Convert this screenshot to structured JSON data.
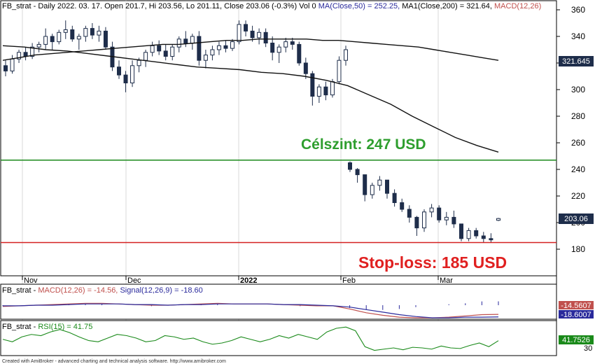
{
  "header": {
    "prefix": "FB_strat - Daily 2022. 03. 17. Open 201.7, Hi 203.56, Lo 201.11, Close 203.06 (-0.3%) Vol 0 ",
    "ma50": "MA(Close,50) = 252.25, ",
    "ma200": "MA1(Close,200) = 321.64, ",
    "macd": "MACD(12,26)"
  },
  "macd_header": {
    "prefix": "FB_strat - ",
    "macd": "MACD(12,26) = -14.56, ",
    "signal": "Signal(12,26,9) = -18.60"
  },
  "rsi_header": {
    "prefix": "FB_strat - ",
    "rsi": "RSI(15) = 41.75"
  },
  "annotations": {
    "target": "Célszint: 247 USD",
    "stop": "Stop-loss: 185 USD"
  },
  "axis_badges": {
    "ma200": "321.645",
    "close": "203.06",
    "macd": "-14.5607",
    "signal": "-18.6007",
    "rsi": "41.7526"
  },
  "footer": "Created with AmiBroker - advanced charting and technical analysis software. http://www.amibroker.com",
  "colors": {
    "candle": "#1e2d4a",
    "target_line": "#1a8a1a",
    "stop_line": "#d42020",
    "target_text": "#2e9e2e",
    "stop_text": "#e02020",
    "macd": "#c0504d",
    "signal": "#2a2a9c",
    "rsi": "#1a8a1a",
    "badge": "#1e2d4a"
  },
  "chart_data": {
    "type": "candlestick",
    "price_axis": {
      "ticks": [
        180,
        200,
        220,
        240,
        260,
        280,
        300,
        320,
        340,
        360
      ],
      "ylim": [
        170,
        366
      ]
    },
    "time_labels": [
      "Nov",
      "Dec",
      "2022",
      "Feb",
      "Mar"
    ],
    "levels": {
      "target": 247,
      "stop_loss": 185
    },
    "ma200_end": 321.645,
    "candles": [
      [
        318,
        322,
        310,
        314
      ],
      [
        314,
        326,
        312,
        323
      ],
      [
        323,
        330,
        320,
        328
      ],
      [
        328,
        332,
        322,
        325
      ],
      [
        325,
        335,
        323,
        332
      ],
      [
        332,
        336,
        328,
        334
      ],
      [
        334,
        346,
        330,
        340
      ],
      [
        340,
        342,
        330,
        336
      ],
      [
        336,
        345,
        334,
        343
      ],
      [
        343,
        352,
        338,
        345
      ],
      [
        345,
        348,
        336,
        338
      ],
      [
        338,
        342,
        330,
        340
      ],
      [
        340,
        348,
        336,
        346
      ],
      [
        346,
        350,
        338,
        341
      ],
      [
        341,
        348,
        336,
        344
      ],
      [
        344,
        347,
        330,
        332
      ],
      [
        332,
        336,
        314,
        317
      ],
      [
        317,
        322,
        308,
        311
      ],
      [
        311,
        314,
        298,
        305
      ],
      [
        305,
        322,
        302,
        318
      ],
      [
        318,
        324,
        313,
        322
      ],
      [
        322,
        330,
        317,
        328
      ],
      [
        328,
        336,
        325,
        333
      ],
      [
        333,
        337,
        326,
        329
      ],
      [
        329,
        334,
        322,
        325
      ],
      [
        325,
        334,
        322,
        332
      ],
      [
        332,
        340,
        328,
        338
      ],
      [
        338,
        344,
        332,
        335
      ],
      [
        335,
        342,
        330,
        340
      ],
      [
        340,
        344,
        318,
        322
      ],
      [
        322,
        330,
        316,
        326
      ],
      [
        326,
        333,
        322,
        330
      ],
      [
        330,
        336,
        326,
        333
      ],
      [
        333,
        337,
        328,
        331
      ],
      [
        331,
        338,
        329,
        336
      ],
      [
        336,
        352,
        334,
        349
      ],
      [
        349,
        352,
        340,
        344
      ],
      [
        344,
        348,
        336,
        339
      ],
      [
        339,
        346,
        334,
        343
      ],
      [
        343,
        346,
        332,
        335
      ],
      [
        335,
        340,
        322,
        328
      ],
      [
        328,
        334,
        320,
        332
      ],
      [
        332,
        339,
        328,
        336
      ],
      [
        336,
        339,
        330,
        334
      ],
      [
        334,
        336,
        318,
        320
      ],
      [
        320,
        324,
        308,
        312
      ],
      [
        312,
        314,
        288,
        295
      ],
      [
        295,
        304,
        290,
        302
      ],
      [
        302,
        306,
        292,
        296
      ],
      [
        296,
        308,
        294,
        306
      ],
      [
        306,
        325,
        304,
        322
      ],
      [
        322,
        333,
        318,
        330
      ],
      [
        245,
        246,
        238,
        240
      ],
      [
        240,
        241,
        230,
        236
      ],
      [
        236,
        236,
        216,
        221
      ],
      [
        221,
        230,
        218,
        228
      ],
      [
        228,
        235,
        224,
        232
      ],
      [
        232,
        232,
        218,
        222
      ],
      [
        222,
        225,
        212,
        215
      ],
      [
        215,
        218,
        208,
        210
      ],
      [
        210,
        213,
        200,
        204
      ],
      [
        204,
        205,
        190,
        196
      ],
      [
        196,
        210,
        193,
        208
      ],
      [
        208,
        214,
        204,
        211
      ],
      [
        211,
        213,
        200,
        202
      ],
      [
        202,
        208,
        198,
        204
      ],
      [
        204,
        209,
        196,
        199
      ],
      [
        199,
        199,
        186,
        188
      ],
      [
        188,
        196,
        186,
        194
      ],
      [
        194,
        196,
        188,
        190
      ],
      [
        190,
        193,
        185,
        188
      ],
      [
        188,
        192,
        185,
        187
      ],
      [
        201.7,
        203.56,
        201.11,
        203.06
      ]
    ],
    "ma50": [
      333,
      332,
      330,
      329,
      327,
      325,
      323,
      321,
      319,
      317,
      316,
      315,
      313,
      312,
      310,
      307,
      303,
      296,
      289,
      280,
      272,
      264,
      258,
      253
    ],
    "ma200": [
      322,
      324,
      326,
      327,
      328,
      329,
      330,
      331,
      332,
      333,
      334,
      334,
      335,
      336,
      337,
      337,
      338,
      338,
      338,
      338,
      337,
      337,
      336,
      335,
      334,
      333,
      332,
      330,
      328,
      326,
      324,
      322
    ],
    "macd": {
      "series": [
        {
          "name": "MACD(12,26)",
          "values": [
            -2,
            -1,
            0,
            1,
            2,
            3,
            3,
            2,
            1,
            0,
            0,
            1,
            2,
            3,
            2,
            2,
            2,
            1,
            0,
            -1,
            -1,
            -6,
            -12,
            -16,
            -19,
            -20,
            -20,
            -19,
            -17,
            -15,
            -14.56
          ]
        },
        {
          "name": "Signal(12,26,9)",
          "values": [
            -1,
            -1,
            0,
            0,
            1,
            2,
            2,
            2,
            1,
            1,
            0,
            1,
            1,
            2,
            2,
            2,
            2,
            1,
            1,
            0,
            -1,
            -3,
            -7,
            -11,
            -15,
            -18,
            -20,
            -20,
            -19,
            -19,
            -18.6
          ]
        }
      ],
      "badges": [
        -14.5607,
        -18.6007
      ]
    },
    "rsi": {
      "name": "RSI(15)",
      "values": [
        44,
        40,
        48,
        52,
        50,
        56,
        60,
        55,
        48,
        42,
        40,
        46,
        52,
        50,
        46,
        40,
        42,
        50,
        48,
        44,
        46,
        40,
        36,
        38,
        42,
        48,
        44,
        40,
        44,
        50,
        46,
        52,
        48,
        44,
        56,
        62,
        64,
        58,
        32,
        26,
        28,
        30,
        27,
        31,
        30,
        28,
        33,
        30,
        29,
        34,
        38,
        32,
        41.75
      ],
      "ytick": 30,
      "badge": 41.7526
    }
  }
}
